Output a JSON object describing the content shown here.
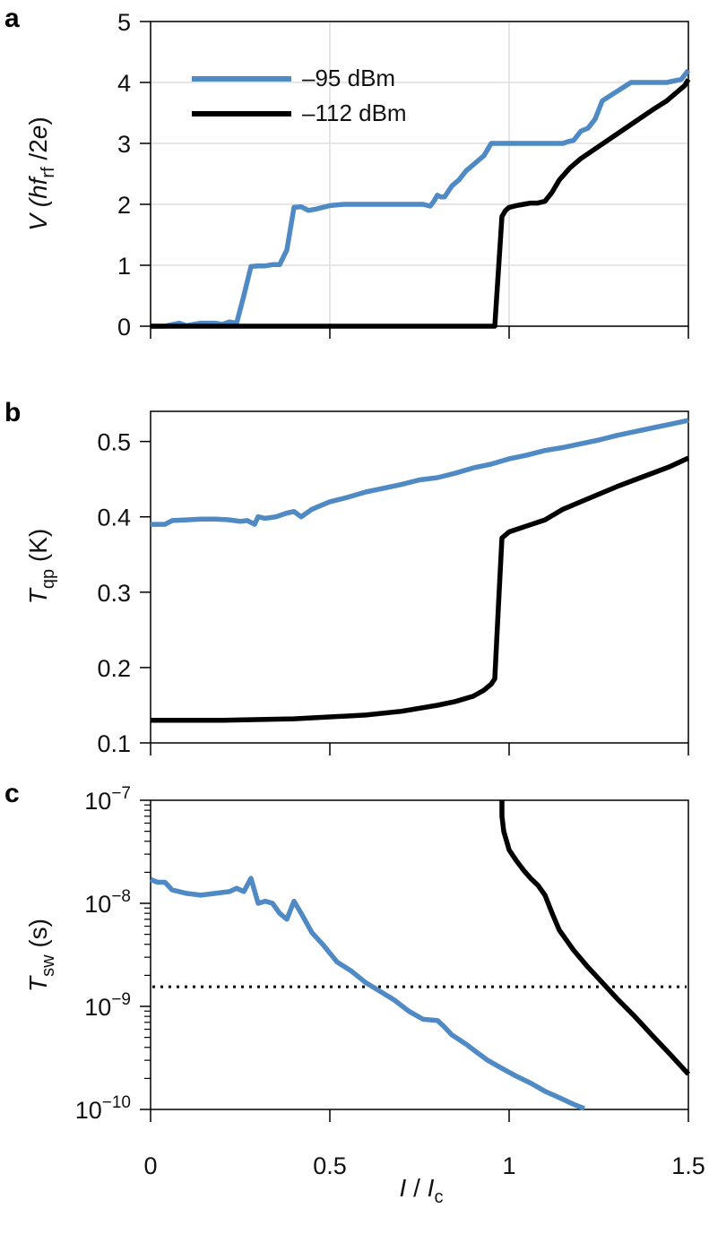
{
  "colors": {
    "blue": "#4f8ac4",
    "black": "#000000"
  },
  "chart_data": [
    {
      "panel_label": "a",
      "type": "line",
      "ylabel_pre": "V (",
      "ylabel_hf": "hf",
      "ylabel_sub": "rf",
      "ylabel_post": " /2",
      "ylabel_e": "e",
      "ylabel_close": ")",
      "xlim": [
        0,
        1.5
      ],
      "ylim": [
        0,
        5
      ],
      "grid": true,
      "legend_position": "top-left",
      "yticks": [
        0,
        1,
        2,
        3,
        4,
        5
      ],
      "ytick_labels": [
        "0",
        "1",
        "2",
        "3",
        "4",
        "5"
      ],
      "series": [
        {
          "name": "–95 dBm",
          "color": "#4f8ac4",
          "x": [
            0,
            0.04,
            0.08,
            0.1,
            0.14,
            0.18,
            0.2,
            0.22,
            0.24,
            0.26,
            0.28,
            0.3,
            0.32,
            0.34,
            0.36,
            0.38,
            0.4,
            0.42,
            0.44,
            0.46,
            0.5,
            0.54,
            0.6,
            0.66,
            0.72,
            0.76,
            0.78,
            0.79,
            0.8,
            0.81,
            0.82,
            0.84,
            0.86,
            0.88,
            0.9,
            0.93,
            0.94,
            0.95,
            0.96,
            0.98,
            1.0,
            1.05,
            1.1,
            1.15,
            1.16,
            1.18,
            1.2,
            1.22,
            1.24,
            1.26,
            1.3,
            1.34,
            1.4,
            1.44,
            1.48,
            1.5
          ],
          "y": [
            0,
            0,
            0.05,
            0.01,
            0.05,
            0.05,
            0.03,
            0.07,
            0.05,
            0.5,
            0.98,
            0.99,
            0.99,
            1.01,
            1.01,
            1.25,
            1.95,
            1.96,
            1.9,
            1.92,
            1.98,
            2.0,
            2.0,
            2.0,
            2.0,
            2.0,
            1.97,
            2.05,
            2.15,
            2.12,
            2.12,
            2.3,
            2.4,
            2.55,
            2.65,
            2.8,
            2.9,
            3.0,
            3.0,
            3.0,
            3.0,
            3.0,
            3.0,
            3.0,
            3.02,
            3.05,
            3.2,
            3.25,
            3.4,
            3.7,
            3.85,
            4.0,
            4.0,
            4.0,
            4.05,
            4.2
          ]
        },
        {
          "name": "–112 dBm",
          "color": "#000000",
          "x": [
            0,
            0.2,
            0.5,
            0.8,
            0.96,
            0.97,
            0.98,
            0.99,
            1.0,
            1.02,
            1.04,
            1.06,
            1.08,
            1.1,
            1.12,
            1.14,
            1.17,
            1.2,
            1.25,
            1.3,
            1.35,
            1.4,
            1.44,
            1.47,
            1.49,
            1.5
          ],
          "y": [
            0,
            0,
            0,
            0,
            0,
            0.9,
            1.8,
            1.9,
            1.95,
            1.98,
            2.0,
            2.02,
            2.02,
            2.05,
            2.2,
            2.4,
            2.6,
            2.75,
            2.95,
            3.15,
            3.35,
            3.55,
            3.7,
            3.85,
            3.95,
            4.05
          ]
        }
      ]
    },
    {
      "panel_label": "b",
      "type": "line",
      "ylabel_sym": "T",
      "ylabel_sub": "qp",
      "ylabel_unit": " (K)",
      "xlim": [
        0,
        1.5
      ],
      "ylim": [
        0.1,
        0.54
      ],
      "grid": false,
      "yticks": [
        0.1,
        0.2,
        0.3,
        0.4,
        0.5
      ],
      "ytick_labels": [
        "0.1",
        "0.2",
        "0.3",
        "0.4",
        "0.5"
      ],
      "series": [
        {
          "name": "–95 dBm",
          "color": "#4f8ac4",
          "x": [
            0,
            0.02,
            0.04,
            0.06,
            0.1,
            0.14,
            0.18,
            0.22,
            0.25,
            0.27,
            0.29,
            0.3,
            0.32,
            0.35,
            0.38,
            0.4,
            0.42,
            0.45,
            0.5,
            0.55,
            0.6,
            0.65,
            0.7,
            0.75,
            0.8,
            0.85,
            0.9,
            0.95,
            1.0,
            1.05,
            1.1,
            1.15,
            1.2,
            1.25,
            1.3,
            1.35,
            1.4,
            1.45,
            1.5
          ],
          "y": [
            0.39,
            0.39,
            0.39,
            0.395,
            0.396,
            0.397,
            0.397,
            0.396,
            0.394,
            0.395,
            0.39,
            0.4,
            0.398,
            0.4,
            0.405,
            0.407,
            0.4,
            0.41,
            0.42,
            0.426,
            0.433,
            0.438,
            0.443,
            0.449,
            0.452,
            0.458,
            0.465,
            0.47,
            0.477,
            0.482,
            0.488,
            0.492,
            0.497,
            0.502,
            0.508,
            0.513,
            0.518,
            0.523,
            0.528
          ]
        },
        {
          "name": "–112 dBm",
          "color": "#000000",
          "x": [
            0,
            0.2,
            0.4,
            0.6,
            0.7,
            0.8,
            0.85,
            0.9,
            0.93,
            0.95,
            0.96,
            0.97,
            0.98,
            1.0,
            1.05,
            1.1,
            1.15,
            1.2,
            1.25,
            1.3,
            1.35,
            1.4,
            1.45,
            1.5
          ],
          "y": [
            0.13,
            0.13,
            0.132,
            0.137,
            0.142,
            0.15,
            0.155,
            0.162,
            0.17,
            0.178,
            0.185,
            0.28,
            0.372,
            0.38,
            0.388,
            0.396,
            0.41,
            0.42,
            0.43,
            0.44,
            0.449,
            0.458,
            0.467,
            0.478
          ]
        }
      ]
    },
    {
      "panel_label": "c",
      "type": "line",
      "ylabel_sym": "T",
      "ylabel_sub": "sw",
      "ylabel_unit": " (s)",
      "xlabel_sym": "I",
      "xlabel_mid": " / ",
      "xlabel_sym2": "I",
      "xlabel_sub": "c",
      "xlim": [
        0,
        1.5
      ],
      "ylim": [
        1e-10,
        1e-07
      ],
      "yscale": "log",
      "grid": false,
      "yticks": [
        1e-10,
        1e-09,
        1e-08,
        1e-07
      ],
      "ytick_labels": [
        {
          "base": "10",
          "exp": "−10"
        },
        {
          "base": "10",
          "exp": "−9"
        },
        {
          "base": "10",
          "exp": "−8"
        },
        {
          "base": "10",
          "exp": "−7"
        }
      ],
      "xticks": [
        0,
        0.5,
        1,
        1.5
      ],
      "xtick_labels": [
        "0",
        "0.5",
        "1",
        "1.5"
      ],
      "hline": {
        "y": 1.55e-09,
        "style": "dotted"
      },
      "series": [
        {
          "name": "–95 dBm",
          "color": "#4f8ac4",
          "x": [
            0,
            0.02,
            0.04,
            0.06,
            0.1,
            0.14,
            0.18,
            0.22,
            0.24,
            0.26,
            0.28,
            0.3,
            0.32,
            0.34,
            0.36,
            0.38,
            0.4,
            0.42,
            0.45,
            0.48,
            0.52,
            0.56,
            0.6,
            0.64,
            0.68,
            0.72,
            0.76,
            0.8,
            0.82,
            0.84,
            0.88,
            0.9,
            0.94,
            0.98,
            1.02,
            1.06,
            1.1,
            1.14,
            1.18,
            1.21
          ],
          "y": [
            1.7e-08,
            1.6e-08,
            1.6e-08,
            1.35e-08,
            1.25e-08,
            1.2e-08,
            1.25e-08,
            1.3e-08,
            1.4e-08,
            1.3e-08,
            1.75e-08,
            1e-08,
            1.05e-08,
            1e-08,
            8e-09,
            7e-09,
            1.05e-08,
            8e-09,
            5.2e-09,
            4e-09,
            2.7e-09,
            2.2e-09,
            1.7e-09,
            1.4e-09,
            1.15e-09,
            9e-10,
            7.5e-10,
            7.3e-10,
            6.3e-10,
            5.3e-10,
            4.3e-10,
            3.8e-10,
            3e-10,
            2.5e-10,
            2.1e-10,
            1.8e-10,
            1.5e-10,
            1.3e-10,
            1.12e-10,
            1.02e-10
          ]
        },
        {
          "name": "–112 dBm",
          "color": "#000000",
          "x": [
            0.98,
            0.98,
            0.985,
            1.0,
            1.02,
            1.04,
            1.06,
            1.08,
            1.1,
            1.12,
            1.14,
            1.18,
            1.22,
            1.26,
            1.3,
            1.35,
            1.4,
            1.45,
            1.5
          ],
          "y": [
            1e-07,
            7e-08,
            5e-08,
            3.3e-08,
            2.6e-08,
            2.1e-08,
            1.75e-08,
            1.5e-08,
            1.2e-08,
            8e-09,
            5.5e-09,
            3.5e-09,
            2.4e-09,
            1.7e-09,
            1.2e-09,
            8e-10,
            5.2e-10,
            3.4e-10,
            2.2e-10
          ]
        }
      ]
    }
  ]
}
